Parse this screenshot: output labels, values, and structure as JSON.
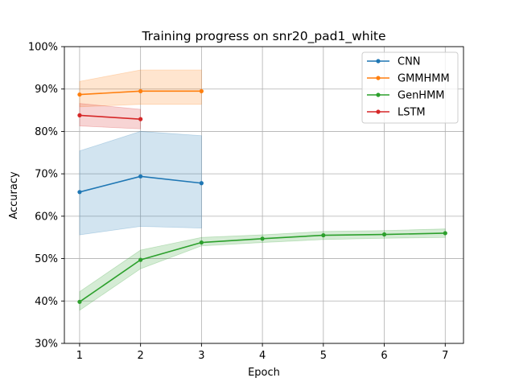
{
  "chart_data": {
    "type": "line",
    "title": "Training progress on snr20_pad1_white",
    "xlabel": "Epoch",
    "ylabel": "Accuracy",
    "xlim": [
      0.75,
      7.3
    ],
    "ylim": [
      30,
      100
    ],
    "x_ticks": [
      1,
      2,
      3,
      4,
      5,
      6,
      7
    ],
    "x_tick_labels": [
      "1",
      "2",
      "3",
      "4",
      "5",
      "6",
      "7"
    ],
    "y_ticks": [
      30,
      40,
      50,
      60,
      70,
      80,
      90,
      100
    ],
    "y_tick_labels": [
      "30%",
      "40%",
      "50%",
      "60%",
      "70%",
      "80%",
      "90%",
      "100%"
    ],
    "grid": true,
    "legend_position": "top-right",
    "series": [
      {
        "name": "CNN",
        "color": "#1f77b4",
        "x": [
          1,
          2,
          3
        ],
        "values": [
          65.7,
          69.4,
          67.8
        ],
        "band_low": [
          55.6,
          57.6,
          57.2
        ],
        "band_high": [
          75.4,
          80.0,
          79.0
        ]
      },
      {
        "name": "GMMHMM",
        "color": "#ff7f0e",
        "x": [
          1,
          2,
          3
        ],
        "values": [
          88.7,
          89.5,
          89.5
        ],
        "band_low": [
          85.8,
          86.4,
          86.4
        ],
        "band_high": [
          91.8,
          94.5,
          94.5
        ]
      },
      {
        "name": "GenHMM",
        "color": "#2ca02c",
        "x": [
          1,
          2,
          3,
          4,
          5,
          6,
          7
        ],
        "values": [
          39.8,
          49.7,
          53.8,
          54.7,
          55.5,
          55.7,
          56.0
        ],
        "band_low": [
          37.8,
          47.6,
          53.0,
          53.8,
          54.5,
          54.8,
          55.0
        ],
        "band_high": [
          42.2,
          52.0,
          55.0,
          55.6,
          56.4,
          56.6,
          57.0
        ]
      },
      {
        "name": "LSTM",
        "color": "#d62728",
        "x": [
          1,
          2
        ],
        "values": [
          83.8,
          82.9
        ],
        "band_low": [
          81.3,
          80.6
        ],
        "band_high": [
          86.6,
          85.2
        ]
      }
    ]
  }
}
